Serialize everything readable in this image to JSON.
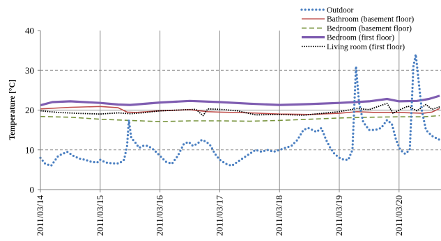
{
  "chart_data": {
    "type": "line",
    "ylabel": "Temperature [°C]",
    "ylim": [
      0,
      40
    ],
    "yticks": [
      0,
      10,
      20,
      30,
      40
    ],
    "xlim": [
      "2011/03/14",
      "2011/03/20 18:00"
    ],
    "xticks": [
      "2011/03/14",
      "2011/03/15",
      "2011/03/16",
      "2011/03/17",
      "2011/03/18",
      "2011/03/19",
      "2011/03/20"
    ],
    "grid": {
      "horizontal_dashed": [
        10,
        30
      ],
      "horizontal_solid": [
        20
      ],
      "vertical_solid_at_day_boundaries": true
    },
    "legend_position": "top-right",
    "series": [
      {
        "name": "Outdoor",
        "color": "#4a7fc1",
        "style": "dotted",
        "points": [
          [
            0,
            8
          ],
          [
            0.08,
            6.5
          ],
          [
            0.18,
            6
          ],
          [
            0.3,
            8.5
          ],
          [
            0.45,
            9.5
          ],
          [
            0.55,
            8.5
          ],
          [
            0.65,
            7.8
          ],
          [
            0.75,
            7.5
          ],
          [
            0.85,
            7
          ],
          [
            0.95,
            6.8
          ],
          [
            1.0,
            7.5
          ],
          [
            1.1,
            6.8
          ],
          [
            1.2,
            6.6
          ],
          [
            1.32,
            6.6
          ],
          [
            1.4,
            7.5
          ],
          [
            1.45,
            11
          ],
          [
            1.48,
            17.5
          ],
          [
            1.52,
            13
          ],
          [
            1.58,
            12
          ],
          [
            1.65,
            10.5
          ],
          [
            1.72,
            11
          ],
          [
            1.8,
            11
          ],
          [
            1.9,
            10
          ],
          [
            2.0,
            8.5
          ],
          [
            2.1,
            7
          ],
          [
            2.2,
            6.5
          ],
          [
            2.3,
            8.5
          ],
          [
            2.4,
            11.5
          ],
          [
            2.48,
            12
          ],
          [
            2.55,
            11
          ],
          [
            2.62,
            11.5
          ],
          [
            2.7,
            12.5
          ],
          [
            2.78,
            12
          ],
          [
            2.85,
            11
          ],
          [
            2.92,
            9
          ],
          [
            3.0,
            7.5
          ],
          [
            3.1,
            6.5
          ],
          [
            3.2,
            6
          ],
          [
            3.3,
            7
          ],
          [
            3.4,
            8
          ],
          [
            3.5,
            9
          ],
          [
            3.6,
            10
          ],
          [
            3.7,
            9.5
          ],
          [
            3.8,
            10
          ],
          [
            3.9,
            9.5
          ],
          [
            4.0,
            10
          ],
          [
            4.1,
            10.5
          ],
          [
            4.2,
            11
          ],
          [
            4.3,
            12.5
          ],
          [
            4.4,
            15
          ],
          [
            4.48,
            15.5
          ],
          [
            4.55,
            15
          ],
          [
            4.62,
            14.5
          ],
          [
            4.7,
            15.5
          ],
          [
            4.78,
            12.5
          ],
          [
            4.85,
            10.5
          ],
          [
            4.92,
            9
          ],
          [
            5.0,
            8
          ],
          [
            5.08,
            7.5
          ],
          [
            5.15,
            7.5
          ],
          [
            5.22,
            10
          ],
          [
            5.28,
            31
          ],
          [
            5.33,
            22
          ],
          [
            5.4,
            17
          ],
          [
            5.5,
            15
          ],
          [
            5.6,
            15
          ],
          [
            5.7,
            15.5
          ],
          [
            5.8,
            17.5
          ],
          [
            5.88,
            16.5
          ],
          [
            5.95,
            12.5
          ],
          [
            6.02,
            10
          ],
          [
            6.1,
            9
          ],
          [
            6.18,
            10
          ],
          [
            6.24,
            31
          ],
          [
            6.28,
            34
          ],
          [
            6.33,
            27
          ],
          [
            6.38,
            20
          ],
          [
            6.45,
            15
          ],
          [
            6.55,
            13.5
          ],
          [
            6.68,
            12.5
          ]
        ]
      },
      {
        "name": "Bathroom (basement floor)",
        "color": "#c0504d",
        "style": "solid",
        "points": [
          [
            0,
            20.3
          ],
          [
            0.5,
            20.7
          ],
          [
            1.0,
            20.9
          ],
          [
            1.3,
            20.6
          ],
          [
            1.45,
            19.5
          ],
          [
            1.6,
            19.4
          ],
          [
            2.0,
            19.8
          ],
          [
            2.5,
            20.1
          ],
          [
            2.8,
            19.6
          ],
          [
            3.0,
            19.5
          ],
          [
            3.5,
            19.3
          ],
          [
            4.0,
            19.0
          ],
          [
            4.5,
            18.9
          ],
          [
            5.0,
            19.2
          ],
          [
            5.3,
            19.6
          ],
          [
            5.6,
            19.4
          ],
          [
            6.0,
            19.4
          ],
          [
            6.4,
            19.2
          ],
          [
            6.55,
            19.5
          ],
          [
            6.68,
            20.4
          ]
        ]
      },
      {
        "name": "Bedroom (basement floor)",
        "color": "#77933c",
        "style": "dashed",
        "points": [
          [
            0,
            18.4
          ],
          [
            0.5,
            18.2
          ],
          [
            1.0,
            17.7
          ],
          [
            1.5,
            17.4
          ],
          [
            2.0,
            17.1
          ],
          [
            2.5,
            17.3
          ],
          [
            3.0,
            17.3
          ],
          [
            3.5,
            17.2
          ],
          [
            4.0,
            17.4
          ],
          [
            4.5,
            17.7
          ],
          [
            5.0,
            18.0
          ],
          [
            5.5,
            18.2
          ],
          [
            6.0,
            18.3
          ],
          [
            6.4,
            18.3
          ],
          [
            6.68,
            18.6
          ]
        ]
      },
      {
        "name": "Bedroom (first floor)",
        "color": "#7f5db1",
        "style": "solid-thick",
        "points": [
          [
            0,
            21.2
          ],
          [
            0.2,
            22.0
          ],
          [
            0.5,
            22.2
          ],
          [
            1.0,
            21.8
          ],
          [
            1.3,
            21.4
          ],
          [
            1.5,
            21.3
          ],
          [
            2.0,
            21.9
          ],
          [
            2.5,
            22.3
          ],
          [
            3.0,
            22.0
          ],
          [
            3.5,
            21.6
          ],
          [
            4.0,
            21.3
          ],
          [
            4.5,
            21.5
          ],
          [
            5.0,
            21.8
          ],
          [
            5.5,
            22.2
          ],
          [
            5.8,
            22.8
          ],
          [
            6.0,
            22.2
          ],
          [
            6.3,
            22.3
          ],
          [
            6.5,
            22.8
          ],
          [
            6.68,
            23.6
          ]
        ]
      },
      {
        "name": "Living room (first floor)",
        "color": "#000000",
        "style": "dotted-fine",
        "points": [
          [
            0,
            19.8
          ],
          [
            0.3,
            19.4
          ],
          [
            0.6,
            19.2
          ],
          [
            1.0,
            19.0
          ],
          [
            1.3,
            19.3
          ],
          [
            1.5,
            19.1
          ],
          [
            1.7,
            19.3
          ],
          [
            2.0,
            19.8
          ],
          [
            2.3,
            20.0
          ],
          [
            2.6,
            20.2
          ],
          [
            2.72,
            18.6
          ],
          [
            2.8,
            20.3
          ],
          [
            3.0,
            20.2
          ],
          [
            3.3,
            19.8
          ],
          [
            3.6,
            18.8
          ],
          [
            4.0,
            18.9
          ],
          [
            4.4,
            18.7
          ],
          [
            4.8,
            19.3
          ],
          [
            5.0,
            19.6
          ],
          [
            5.3,
            20.4
          ],
          [
            5.5,
            20.1
          ],
          [
            5.8,
            21.7
          ],
          [
            5.9,
            19.2
          ],
          [
            6.0,
            20.0
          ],
          [
            6.15,
            21.0
          ],
          [
            6.3,
            19.8
          ],
          [
            6.45,
            21.4
          ],
          [
            6.55,
            20.2
          ],
          [
            6.68,
            20.8
          ]
        ]
      }
    ]
  }
}
